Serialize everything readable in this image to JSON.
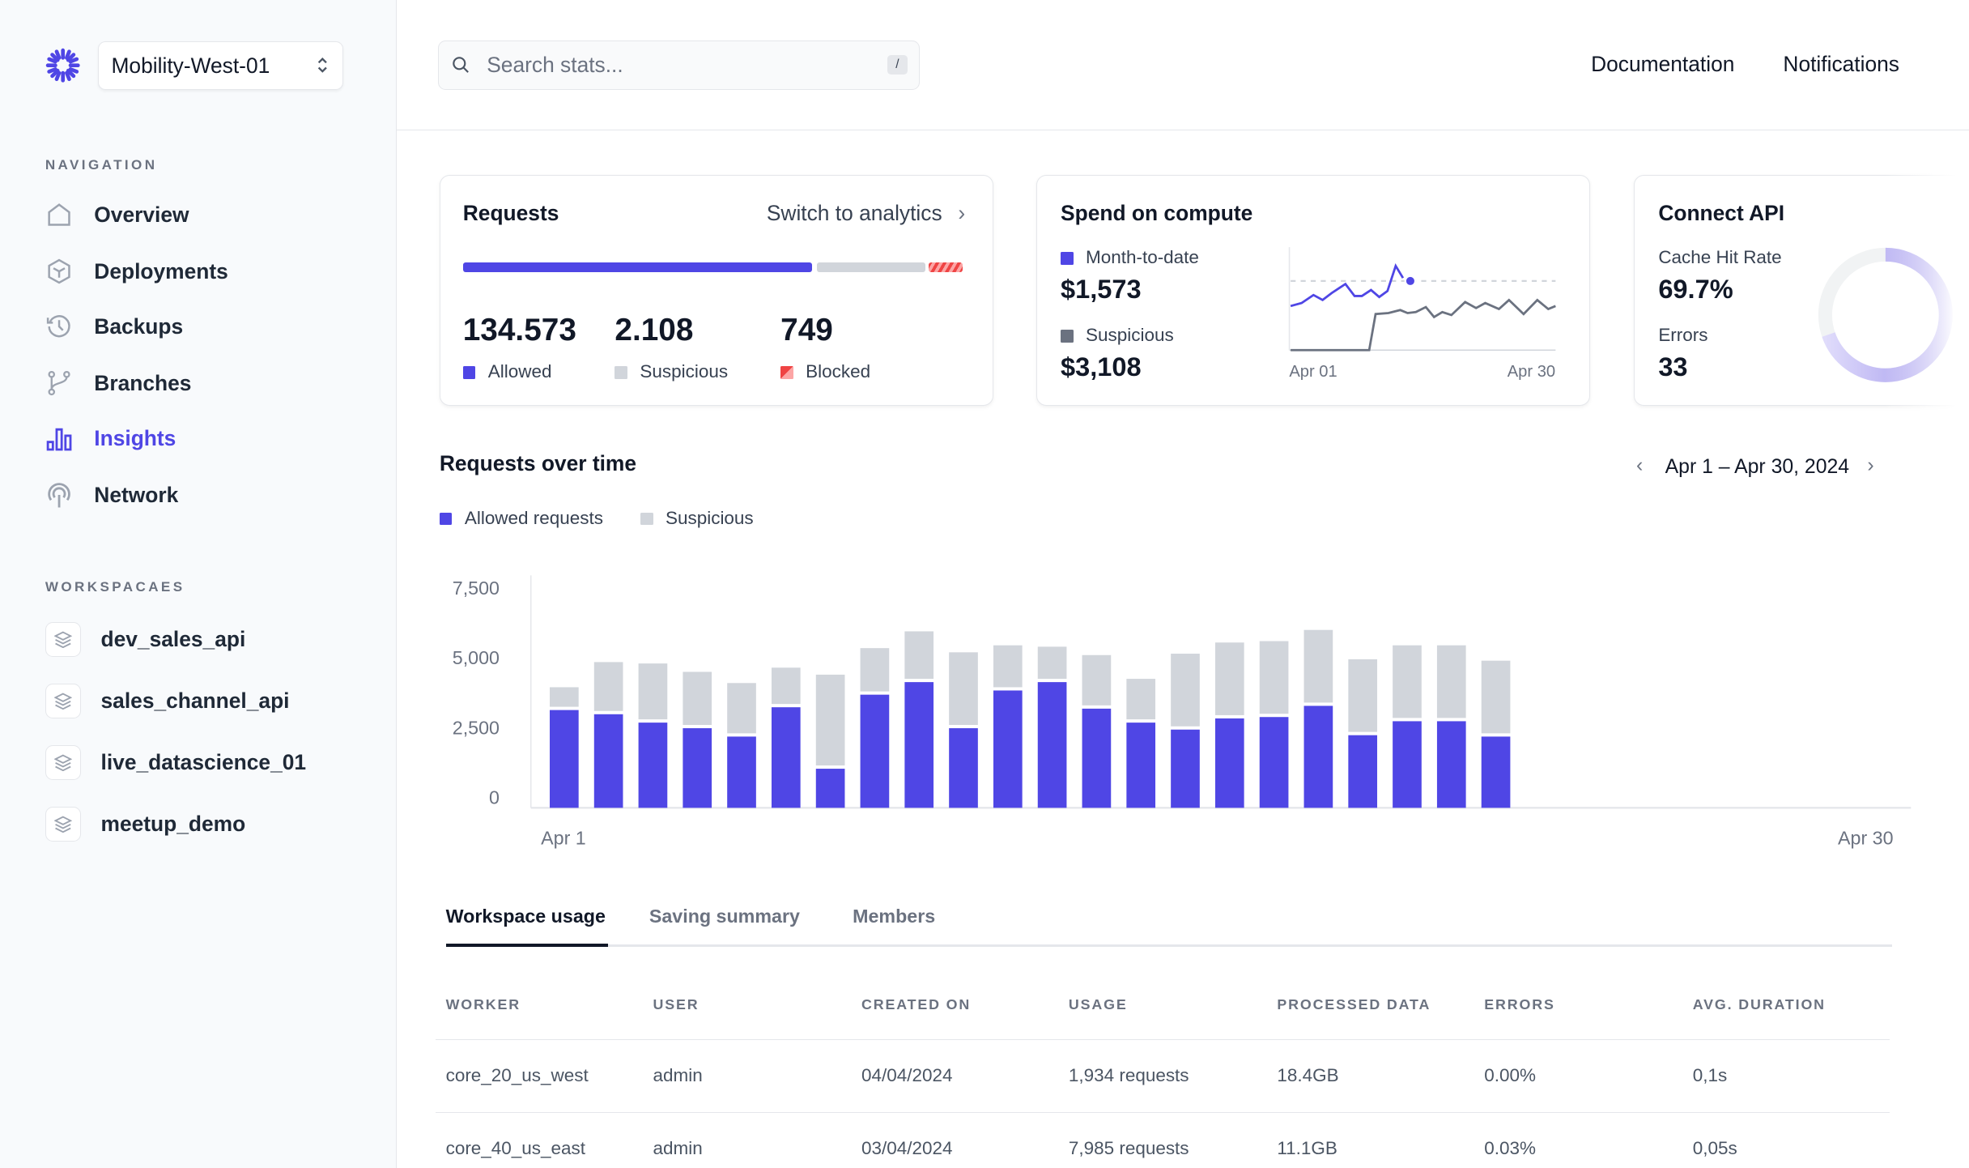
{
  "workspace_selector": {
    "value": "Mobility-West-01"
  },
  "sidebar": {
    "navigation_label": "NAVIGATION",
    "items": [
      {
        "label": "Overview",
        "icon": "home-icon"
      },
      {
        "label": "Deployments",
        "icon": "cube-icon"
      },
      {
        "label": "Backups",
        "icon": "history-icon"
      },
      {
        "label": "Branches",
        "icon": "git-branch-icon"
      },
      {
        "label": "Insights",
        "icon": "bar-chart-icon",
        "active": true
      },
      {
        "label": "Network",
        "icon": "broadcast-icon"
      }
    ],
    "workspaces_label": "WORKSPACAES",
    "workspaces": [
      {
        "label": "dev_sales_api"
      },
      {
        "label": "sales_channel_api"
      },
      {
        "label": "live_datascience_01"
      },
      {
        "label": "meetup_demo"
      }
    ]
  },
  "header": {
    "search_placeholder": "Search stats...",
    "search_shortcut": "/",
    "documentation": "Documentation",
    "notifications": "Notifications"
  },
  "requests_card": {
    "title": "Requests",
    "switch_link": "Switch to analytics",
    "allowed_value": "134.573",
    "allowed_label": "Allowed",
    "suspicious_value": "2.108",
    "suspicious_label": "Suspicious",
    "blocked_value": "749",
    "blocked_label": "Blocked"
  },
  "spend_card": {
    "title": "Spend on compute",
    "mtd_label": "Month-to-date",
    "mtd_value": "$1,573",
    "suspicious_label": "Suspicious",
    "suspicious_value": "$3,108",
    "x_start": "Apr 01",
    "x_end": "Apr 30"
  },
  "api_card": {
    "title": "Connect API",
    "cache_label": "Cache Hit Rate",
    "cache_value": "69.7%",
    "errors_label": "Errors",
    "errors_value": "33",
    "cache_hit_fraction": 0.697
  },
  "colors": {
    "allowed": "#4f46e5",
    "suspicious": "#d1d5db",
    "blocked": "#ef4444",
    "suspicious_line": "#6b7280"
  },
  "section": {
    "title": "Requests over time",
    "date_range": "Apr 1 – Apr 30, 2024",
    "legend_allowed": "Allowed requests",
    "legend_suspicious": "Suspicious"
  },
  "chart_data": [
    {
      "type": "bar",
      "stacked": true,
      "title": "Requests over time",
      "x_tick_labels": [
        "Apr 1",
        "Apr 30"
      ],
      "y_ticks": [
        "0",
        "2,500",
        "5,000",
        "7,500"
      ],
      "ylim": [
        0,
        7500
      ],
      "grid": false,
      "legend": "top-left",
      "series": [
        {
          "name": "Allowed requests",
          "values": [
            3500,
            3350,
            3050,
            2850,
            2550,
            3600,
            1400,
            4050,
            4500,
            2850,
            4200,
            4500,
            3550,
            3050,
            2800,
            3200,
            3250,
            3650,
            2600,
            3100,
            3100,
            2550
          ]
        },
        {
          "name": "Suspicious",
          "values": [
            700,
            1750,
            2000,
            1900,
            1800,
            1300,
            3250,
            1550,
            1700,
            2600,
            1500,
            1150,
            1800,
            1450,
            2600,
            2600,
            2600,
            2600,
            2600,
            2600,
            2600,
            2600
          ]
        }
      ]
    },
    {
      "type": "line",
      "title": "Spend on compute",
      "x_tick_labels": [
        "Apr 01",
        "Apr 30"
      ],
      "xlim": [
        1,
        30
      ],
      "ylim": [
        0,
        100
      ],
      "reference_line": 69,
      "series": [
        {
          "name": "Month-to-date",
          "points": [
            [
              1,
              44
            ],
            [
              2.2,
              47
            ],
            [
              3.5,
              55
            ],
            [
              4.5,
              50
            ],
            [
              5.5,
              57
            ],
            [
              7,
              66
            ],
            [
              8,
              54
            ],
            [
              8.8,
              54
            ],
            [
              9.8,
              60
            ],
            [
              10.7,
              53
            ],
            [
              11.6,
              59
            ],
            [
              12.5,
              84
            ],
            [
              13.3,
              72
            ]
          ],
          "marker": [
            14.1,
            69
          ]
        },
        {
          "name": "Suspicious",
          "points": [
            [
              1,
              0
            ],
            [
              9.6,
              0
            ],
            [
              10.3,
              36
            ],
            [
              11.7,
              37
            ],
            [
              13,
              40
            ],
            [
              13.8,
              37
            ],
            [
              14.7,
              38
            ],
            [
              15.8,
              43
            ],
            [
              16.7,
              33
            ],
            [
              17.6,
              38
            ],
            [
              18.6,
              35
            ],
            [
              20.1,
              48
            ],
            [
              21.3,
              42
            ],
            [
              22.3,
              47
            ],
            [
              23.8,
              41
            ],
            [
              24.9,
              50
            ],
            [
              26.5,
              36
            ],
            [
              28,
              50
            ],
            [
              29.2,
              41
            ],
            [
              30,
              44
            ]
          ]
        }
      ]
    }
  ],
  "tabs": [
    {
      "label": "Workspace usage",
      "active": true
    },
    {
      "label": "Saving summary"
    },
    {
      "label": "Members"
    }
  ],
  "table": {
    "headers": [
      "WORKER",
      "USER",
      "CREATED ON",
      "USAGE",
      "PROCESSED DATA",
      "ERRORS",
      "AVG. DURATION"
    ],
    "rows": [
      [
        "core_20_us_west",
        "admin",
        "04/04/2024",
        "1,934 requests",
        "18.4GB",
        "0.00%",
        "0,1s"
      ],
      [
        "core_40_us_east",
        "admin",
        "03/04/2024",
        "7,985 requests",
        "11.1GB",
        "0.03%",
        "0,05s"
      ]
    ]
  }
}
